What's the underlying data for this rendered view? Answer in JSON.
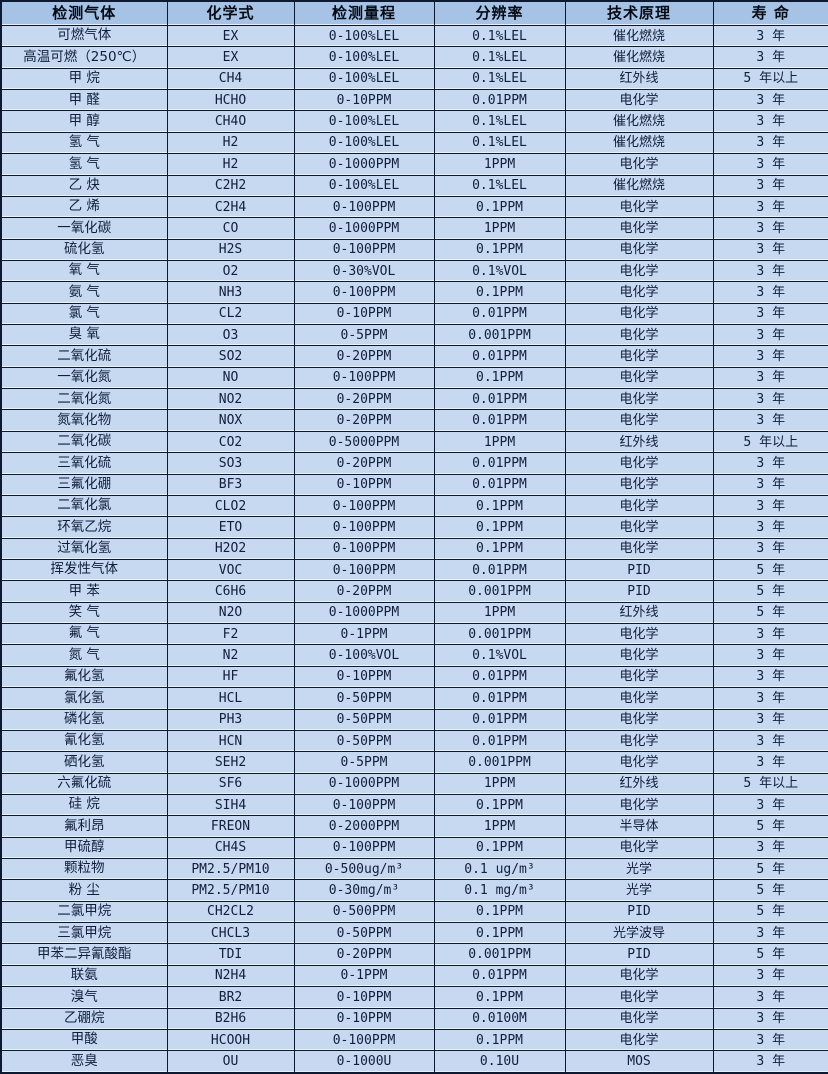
{
  "table": {
    "headers": [
      "检测气体",
      "化学式",
      "检测量程",
      "分辨率",
      "技术原理",
      "寿 命"
    ],
    "column_keys": [
      "gas",
      "formula",
      "range",
      "resolution",
      "principle",
      "lifespan"
    ],
    "rows": [
      [
        "可燃气体",
        "EX",
        "0-100%LEL",
        "0.1%LEL",
        "催化燃烧",
        "3 年"
      ],
      [
        "高温可燃（250℃）",
        "EX",
        "0-100%LEL",
        "0.1%LEL",
        "催化燃烧",
        "3 年"
      ],
      [
        "甲 烷",
        "CH4",
        "0-100%LEL",
        "0.1%LEL",
        "红外线",
        "5 年以上"
      ],
      [
        "甲 醛",
        "HCHO",
        "0-10PPM",
        "0.01PPM",
        "电化学",
        "3 年"
      ],
      [
        "甲 醇",
        "CH4O",
        "0-100%LEL",
        "0.1%LEL",
        "催化燃烧",
        "3 年"
      ],
      [
        "氢 气",
        "H2",
        "0-100%LEL",
        "0.1%LEL",
        "催化燃烧",
        "3 年"
      ],
      [
        "氢 气",
        "H2",
        "0-1000PPM",
        "1PPM",
        "电化学",
        "3 年"
      ],
      [
        "乙 炔",
        "C2H2",
        "0-100%LEL",
        "0.1%LEL",
        "催化燃烧",
        "3 年"
      ],
      [
        "乙 烯",
        "C2H4",
        "0-100PPM",
        "0.1PPM",
        "电化学",
        "3 年"
      ],
      [
        "一氧化碳",
        "CO",
        "0-1000PPM",
        "1PPM",
        "电化学",
        "3 年"
      ],
      [
        "硫化氢",
        "H2S",
        "0-100PPM",
        "0.1PPM",
        "电化学",
        "3 年"
      ],
      [
        "氧 气",
        "O2",
        "0-30%VOL",
        "0.1%VOL",
        "电化学",
        "3 年"
      ],
      [
        "氨 气",
        "NH3",
        "0-100PPM",
        "0.1PPM",
        "电化学",
        "3 年"
      ],
      [
        "氯 气",
        "CL2",
        "0-10PPM",
        "0.01PPM",
        "电化学",
        "3 年"
      ],
      [
        "臭 氧",
        "O3",
        "0-5PPM",
        "0.001PPM",
        "电化学",
        "3 年"
      ],
      [
        "二氧化硫",
        "SO2",
        "0-20PPM",
        "0.01PPM",
        "电化学",
        "3 年"
      ],
      [
        "一氧化氮",
        "NO",
        "0-100PPM",
        "0.1PPM",
        "电化学",
        "3 年"
      ],
      [
        "二氧化氮",
        "NO2",
        "0-20PPM",
        "0.01PPM",
        "电化学",
        "3 年"
      ],
      [
        "氮氧化物",
        "NOX",
        "0-20PPM",
        "0.01PPM",
        "电化学",
        "3 年"
      ],
      [
        "二氧化碳",
        "CO2",
        "0-5000PPM",
        "1PPM",
        "红外线",
        "5 年以上"
      ],
      [
        "三氧化硫",
        "SO3",
        "0-20PPM",
        "0.01PPM",
        "电化学",
        "3 年"
      ],
      [
        "三氟化硼",
        "BF3",
        "0-10PPM",
        "0.01PPM",
        "电化学",
        "3 年"
      ],
      [
        "二氧化氯",
        "CLO2",
        "0-100PPM",
        "0.1PPM",
        "电化学",
        "3 年"
      ],
      [
        "环氧乙烷",
        "ETO",
        "0-100PPM",
        "0.1PPM",
        "电化学",
        "3 年"
      ],
      [
        "过氧化氢",
        "H2O2",
        "0-100PPM",
        "0.1PPM",
        "电化学",
        "3 年"
      ],
      [
        "挥发性气体",
        "VOC",
        "0-100PPM",
        "0.01PPM",
        "PID",
        "5 年"
      ],
      [
        "甲 苯",
        "C6H6",
        "0-20PPM",
        "0.001PPM",
        "PID",
        "5 年"
      ],
      [
        "笑 气",
        "N2O",
        "0-1000PPM",
        "1PPM",
        "红外线",
        "5 年"
      ],
      [
        "氟 气",
        "F2",
        "0-1PPM",
        "0.001PPM",
        "电化学",
        "3 年"
      ],
      [
        "氮 气",
        "N2",
        "0-100%VOL",
        "0.1%VOL",
        "电化学",
        "3 年"
      ],
      [
        "氟化氢",
        "HF",
        "0-10PPM",
        "0.01PPM",
        "电化学",
        "3 年"
      ],
      [
        "氯化氢",
        "HCL",
        "0-50PPM",
        "0.01PPM",
        "电化学",
        "3 年"
      ],
      [
        "磷化氢",
        "PH3",
        "0-50PPM",
        "0.01PPM",
        "电化学",
        "3 年"
      ],
      [
        "氰化氢",
        "HCN",
        "0-50PPM",
        "0.01PPM",
        "电化学",
        "3 年"
      ],
      [
        "硒化氢",
        "SEH2",
        "0-5PPM",
        "0.001PPM",
        "电化学",
        "3 年"
      ],
      [
        "六氟化硫",
        "SF6",
        "0-1000PPM",
        "1PPM",
        "红外线",
        "5 年以上"
      ],
      [
        "硅 烷",
        "SIH4",
        "0-100PPM",
        "0.1PPM",
        "电化学",
        "3 年"
      ],
      [
        "氟利昂",
        "FREON",
        "0-2000PPM",
        "1PPM",
        "半导体",
        "5 年"
      ],
      [
        "甲硫醇",
        "CH4S",
        "0-100PPM",
        "0.1PPM",
        "电化学",
        "3 年"
      ],
      [
        "颗粒物",
        "PM2.5/PM10",
        "0-500ug/m³",
        "0.1 ug/m³",
        "光学",
        "5 年"
      ],
      [
        "粉 尘",
        "PM2.5/PM10",
        "0-30mg/m³",
        "0.1 mg/m³",
        "光学",
        "5 年"
      ],
      [
        "二氯甲烷",
        "CH2CL2",
        "0-500PPM",
        "0.1PPM",
        "PID",
        "5 年"
      ],
      [
        "三氯甲烷",
        "CHCL3",
        "0-50PPM",
        "0.1PPM",
        "光学波导",
        "3 年"
      ],
      [
        "甲苯二异氰酸酯",
        "TDI",
        "0-20PPM",
        "0.001PPM",
        "PID",
        "5 年"
      ],
      [
        "联氨",
        "N2H4",
        "0-1PPM",
        "0.01PPM",
        "电化学",
        "3 年"
      ],
      [
        "溴气",
        "BR2",
        "0-10PPM",
        "0.1PPM",
        "电化学",
        "3 年"
      ],
      [
        "乙硼烷",
        "B2H6",
        "0-10PPM",
        "0.0100M",
        "电化学",
        "3 年"
      ],
      [
        "甲酸",
        "HCOOH",
        "0-100PPM",
        "0.1PPM",
        "电化学",
        "3 年"
      ],
      [
        "恶臭",
        "OU",
        "0-1000U",
        "0.10U",
        "MOS",
        "3 年"
      ]
    ]
  },
  "colors": {
    "header_bg": "#a6c3e6",
    "row_bg": "#c6d9f1",
    "border": "#0c1930",
    "text": "#101f3c"
  }
}
